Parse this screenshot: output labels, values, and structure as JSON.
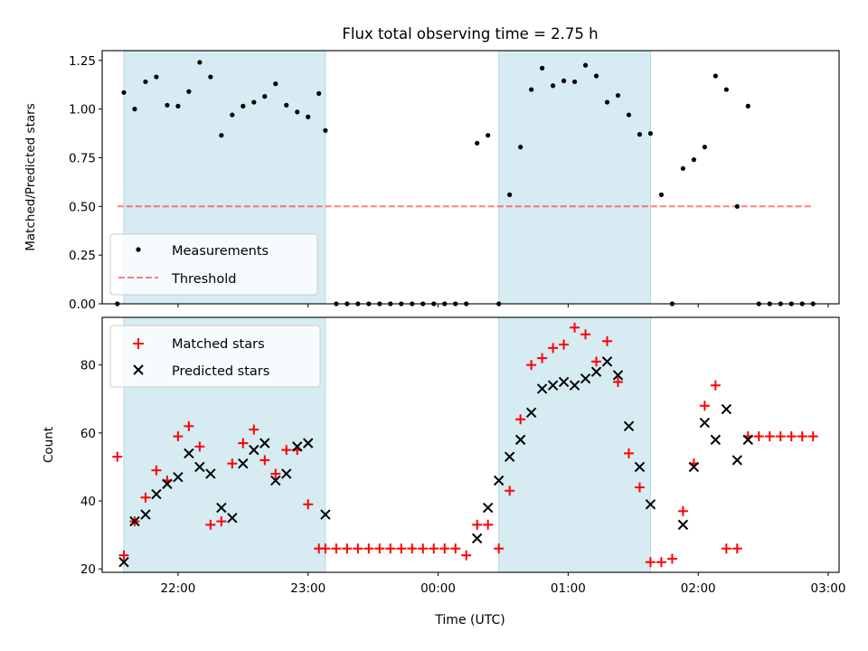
{
  "title": "Flux total observing time = 2.75 h",
  "colors": {
    "shade": "#add8e6",
    "threshold": "#ff0000",
    "measurement": "#000000",
    "matched": "#ff0000",
    "predicted": "#000000"
  },
  "chart_data": [
    {
      "type": "scatter",
      "ylabel": "Matched/Predicted stars",
      "xlabel": "",
      "ylim": [
        0,
        1.3
      ],
      "yticks": [
        "0.00",
        "0.25",
        "0.50",
        "0.75",
        "1.00",
        "1.25"
      ],
      "x_range": [
        "21:25",
        "03:05"
      ],
      "xticks": [
        "22:00",
        "23:00",
        "00:00",
        "01:00",
        "02:00",
        "03:00"
      ],
      "shaded_intervals": [
        [
          "21:35",
          "23:08"
        ],
        [
          "00:28",
          "01:38"
        ]
      ],
      "legend": {
        "position": "lower-left",
        "entries": [
          "Measurements",
          "Threshold"
        ]
      },
      "threshold": {
        "name": "Threshold",
        "y": 0.5,
        "x_from": "21:32",
        "x_to": "02:53",
        "style": "dashed"
      },
      "series": [
        {
          "name": "Measurements",
          "marker": "dot",
          "x": [
            "21:32",
            "21:35",
            "21:40",
            "21:45",
            "21:50",
            "21:55",
            "22:00",
            "22:05",
            "22:10",
            "22:15",
            "22:20",
            "22:25",
            "22:30",
            "22:35",
            "22:40",
            "22:45",
            "22:50",
            "22:55",
            "23:00",
            "23:05",
            "23:08",
            "23:13",
            "23:18",
            "23:23",
            "23:28",
            "23:33",
            "23:38",
            "23:43",
            "23:48",
            "23:53",
            "23:58",
            "00:03",
            "00:08",
            "00:13",
            "00:18",
            "00:23",
            "00:28",
            "00:33",
            "00:38",
            "00:43",
            "00:48",
            "00:53",
            "00:58",
            "01:03",
            "01:08",
            "01:13",
            "01:18",
            "01:23",
            "01:28",
            "01:33",
            "01:38",
            "01:43",
            "01:48",
            "01:53",
            "01:58",
            "02:03",
            "02:08",
            "02:13",
            "02:18",
            "02:23",
            "02:28",
            "02:33",
            "02:38",
            "02:43",
            "02:48",
            "02:53"
          ],
          "y": [
            0.0,
            1.085,
            1.0,
            1.14,
            1.165,
            1.02,
            1.015,
            1.09,
            1.24,
            1.165,
            0.865,
            0.97,
            1.015,
            1.035,
            1.065,
            1.13,
            1.02,
            0.985,
            0.96,
            1.08,
            0.89,
            0.0,
            0.0,
            0.0,
            0.0,
            0.0,
            0.0,
            0.0,
            0.0,
            0.0,
            0.0,
            0.0,
            0.0,
            0.0,
            0.825,
            0.865,
            0.0,
            0.56,
            0.805,
            1.1,
            1.21,
            1.12,
            1.145,
            1.14,
            1.225,
            1.17,
            1.035,
            1.07,
            0.97,
            0.87,
            0.875,
            0.56,
            0.0,
            0.695,
            0.74,
            0.805,
            1.17,
            1.1,
            0.5,
            1.015,
            0.0,
            0.0,
            0.0,
            0.0,
            0.0,
            0.0
          ]
        }
      ]
    },
    {
      "type": "scatter",
      "ylabel": "Count",
      "xlabel": "Time (UTC)",
      "ylim": [
        19,
        94
      ],
      "yticks": [
        "20",
        "40",
        "60",
        "80"
      ],
      "x_range": [
        "21:25",
        "03:05"
      ],
      "xticks": [
        "22:00",
        "23:00",
        "00:00",
        "01:00",
        "02:00",
        "03:00"
      ],
      "shaded_intervals": [
        [
          "21:35",
          "23:08"
        ],
        [
          "00:28",
          "01:38"
        ]
      ],
      "legend": {
        "position": "top-left",
        "entries": [
          "Matched stars",
          "Predicted stars"
        ]
      },
      "series": [
        {
          "name": "Matched stars",
          "marker": "plus",
          "x": [
            "21:32",
            "21:35",
            "21:40",
            "21:45",
            "21:50",
            "21:55",
            "22:00",
            "22:05",
            "22:10",
            "22:15",
            "22:20",
            "22:25",
            "22:30",
            "22:35",
            "22:40",
            "22:45",
            "22:50",
            "22:55",
            "23:00",
            "23:05",
            "23:08",
            "23:13",
            "23:18",
            "23:23",
            "23:28",
            "23:33",
            "23:38",
            "23:43",
            "23:48",
            "23:53",
            "23:58",
            "00:03",
            "00:08",
            "00:13",
            "00:18",
            "00:23",
            "00:28",
            "00:33",
            "00:38",
            "00:43",
            "00:48",
            "00:53",
            "00:58",
            "01:03",
            "01:08",
            "01:13",
            "01:18",
            "01:23",
            "01:28",
            "01:33",
            "01:38",
            "01:43",
            "01:48",
            "01:53",
            "01:58",
            "02:03",
            "02:08",
            "02:13",
            "02:18",
            "02:23",
            "02:28",
            "02:33",
            "02:38",
            "02:43",
            "02:48",
            "02:53"
          ],
          "y": [
            53,
            24,
            34,
            41,
            49,
            46,
            59,
            62,
            56,
            33,
            34,
            51,
            57,
            61,
            52,
            48,
            55,
            55,
            39,
            26,
            26,
            26,
            26,
            26,
            26,
            26,
            26,
            26,
            26,
            26,
            26,
            26,
            26,
            24,
            33,
            33,
            26,
            43,
            64,
            80,
            82,
            85,
            86,
            91,
            89,
            81,
            87,
            75,
            54,
            44,
            22,
            22,
            23,
            37,
            51,
            68,
            74,
            26,
            26,
            59,
            59,
            59,
            59,
            59,
            59,
            59
          ]
        },
        {
          "name": "Predicted stars",
          "marker": "x",
          "x": [
            "21:35",
            "21:40",
            "21:45",
            "21:50",
            "21:55",
            "22:00",
            "22:05",
            "22:10",
            "22:15",
            "22:20",
            "22:25",
            "22:30",
            "22:35",
            "22:40",
            "22:45",
            "22:50",
            "22:55",
            "23:00",
            "23:08",
            "00:18",
            "00:23",
            "00:28",
            "00:33",
            "00:38",
            "00:43",
            "00:48",
            "00:53",
            "00:58",
            "01:03",
            "01:08",
            "01:13",
            "01:18",
            "01:23",
            "01:28",
            "01:33",
            "01:38",
            "01:53",
            "01:58",
            "02:03",
            "02:08",
            "02:13",
            "02:18",
            "02:23"
          ],
          "y": [
            22,
            34,
            36,
            42,
            45,
            47,
            54,
            50,
            48,
            38,
            35,
            51,
            55,
            57,
            46,
            48,
            56,
            57,
            36,
            29,
            38,
            46,
            53,
            58,
            66,
            73,
            74,
            75,
            74,
            76,
            78,
            81,
            77,
            62,
            50,
            39,
            33,
            50,
            63,
            58,
            67,
            52,
            58
          ]
        }
      ]
    }
  ]
}
